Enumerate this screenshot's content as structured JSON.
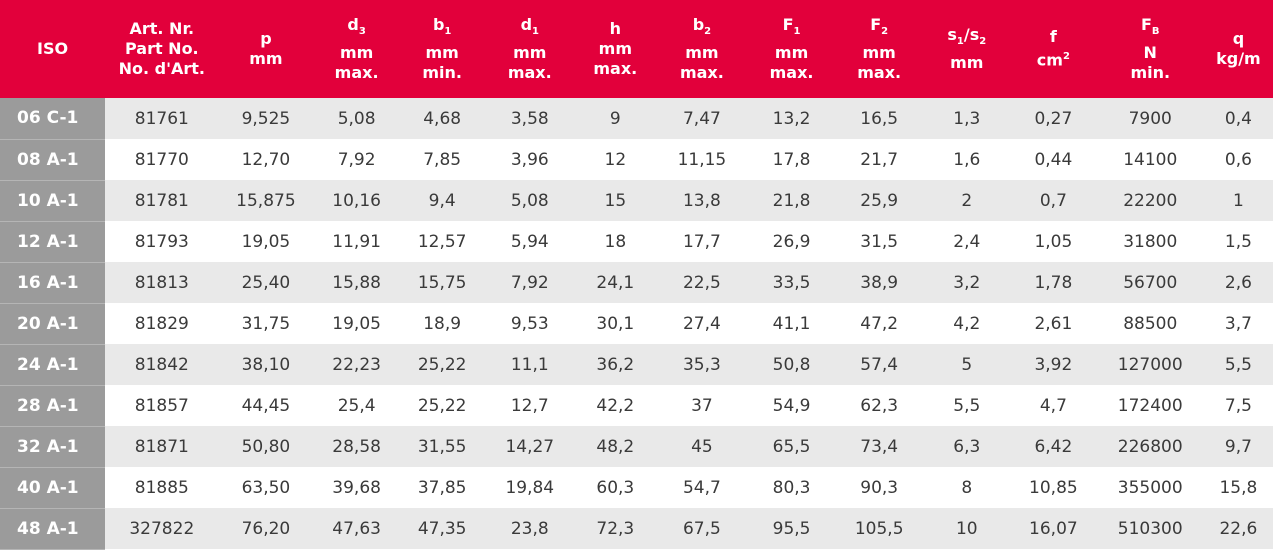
{
  "headers": [
    {
      "lines": [
        "ISO"
      ]
    },
    {
      "lines": [
        "Art. Nr.",
        "Part No.",
        "No. d'Art."
      ]
    },
    {
      "lines": [
        "p",
        "mm"
      ]
    },
    {
      "sym": "d",
      "sub": "3",
      "lines": [
        "mm",
        "max."
      ]
    },
    {
      "sym": "b",
      "sub": "1",
      "lines": [
        "mm",
        "min."
      ]
    },
    {
      "sym": "d",
      "sub": "1",
      "lines": [
        "mm",
        "max."
      ]
    },
    {
      "lines": [
        "h",
        "mm",
        "max."
      ]
    },
    {
      "sym": "b",
      "sub": "2",
      "lines": [
        "mm",
        "max."
      ]
    },
    {
      "sym": "F",
      "sub": "1",
      "lines": [
        "mm",
        "max."
      ]
    },
    {
      "sym": "F",
      "sub": "2",
      "lines": [
        "mm",
        "max."
      ]
    },
    {
      "s1": "s",
      "s1sub": "1",
      "sep": "/",
      "s2": "s",
      "s2sub": "2",
      "lines": [
        "mm"
      ]
    },
    {
      "lines": [
        "f"
      ],
      "unit": "cm",
      "sup": "2"
    },
    {
      "sym": "F",
      "sub": "B",
      "lines": [
        "N",
        "min."
      ]
    },
    {
      "lines": [
        "q",
        "kg/m"
      ]
    }
  ],
  "rows": [
    [
      "06 C-1",
      "81761",
      "9,525",
      "5,08",
      "4,68",
      "3,58",
      "9",
      "7,47",
      "13,2",
      "16,5",
      "1,3",
      "0,27",
      "7900",
      "0,4"
    ],
    [
      "08 A-1",
      "81770",
      "12,70",
      "7,92",
      "7,85",
      "3,96",
      "12",
      "11,15",
      "17,8",
      "21,7",
      "1,6",
      "0,44",
      "14100",
      "0,6"
    ],
    [
      "10 A-1",
      "81781",
      "15,875",
      "10,16",
      "9,4",
      "5,08",
      "15",
      "13,8",
      "21,8",
      "25,9",
      "2",
      "0,7",
      "22200",
      "1"
    ],
    [
      "12 A-1",
      "81793",
      "19,05",
      "11,91",
      "12,57",
      "5,94",
      "18",
      "17,7",
      "26,9",
      "31,5",
      "2,4",
      "1,05",
      "31800",
      "1,5"
    ],
    [
      "16 A-1",
      "81813",
      "25,40",
      "15,88",
      "15,75",
      "7,92",
      "24,1",
      "22,5",
      "33,5",
      "38,9",
      "3,2",
      "1,78",
      "56700",
      "2,6"
    ],
    [
      "20 A-1",
      "81829",
      "31,75",
      "19,05",
      "18,9",
      "9,53",
      "30,1",
      "27,4",
      "41,1",
      "47,2",
      "4,2",
      "2,61",
      "88500",
      "3,7"
    ],
    [
      "24 A-1",
      "81842",
      "38,10",
      "22,23",
      "25,22",
      "11,1",
      "36,2",
      "35,3",
      "50,8",
      "57,4",
      "5",
      "3,92",
      "127000",
      "5,5"
    ],
    [
      "28 A-1",
      "81857",
      "44,45",
      "25,4",
      "25,22",
      "12,7",
      "42,2",
      "37",
      "54,9",
      "62,3",
      "5,5",
      "4,7",
      "172400",
      "7,5"
    ],
    [
      "32 A-1",
      "81871",
      "50,80",
      "28,58",
      "31,55",
      "14,27",
      "48,2",
      "45",
      "65,5",
      "73,4",
      "6,3",
      "6,42",
      "226800",
      "9,7"
    ],
    [
      "40 A-1",
      "81885",
      "63,50",
      "39,68",
      "37,85",
      "19,84",
      "60,3",
      "54,7",
      "80,3",
      "90,3",
      "8",
      "10,85",
      "355000",
      "15,8"
    ],
    [
      "48 A-1",
      "327822",
      "76,20",
      "47,63",
      "47,35",
      "23,8",
      "72,3",
      "67,5",
      "95,5",
      "105,5",
      "10",
      "16,07",
      "510300",
      "22,6"
    ]
  ],
  "colors": {
    "header_bg": "#e2003b",
    "iso_col_bg": "#9b9b9b",
    "stripe": "#e9e9e9",
    "text": "#3a3a3a"
  }
}
